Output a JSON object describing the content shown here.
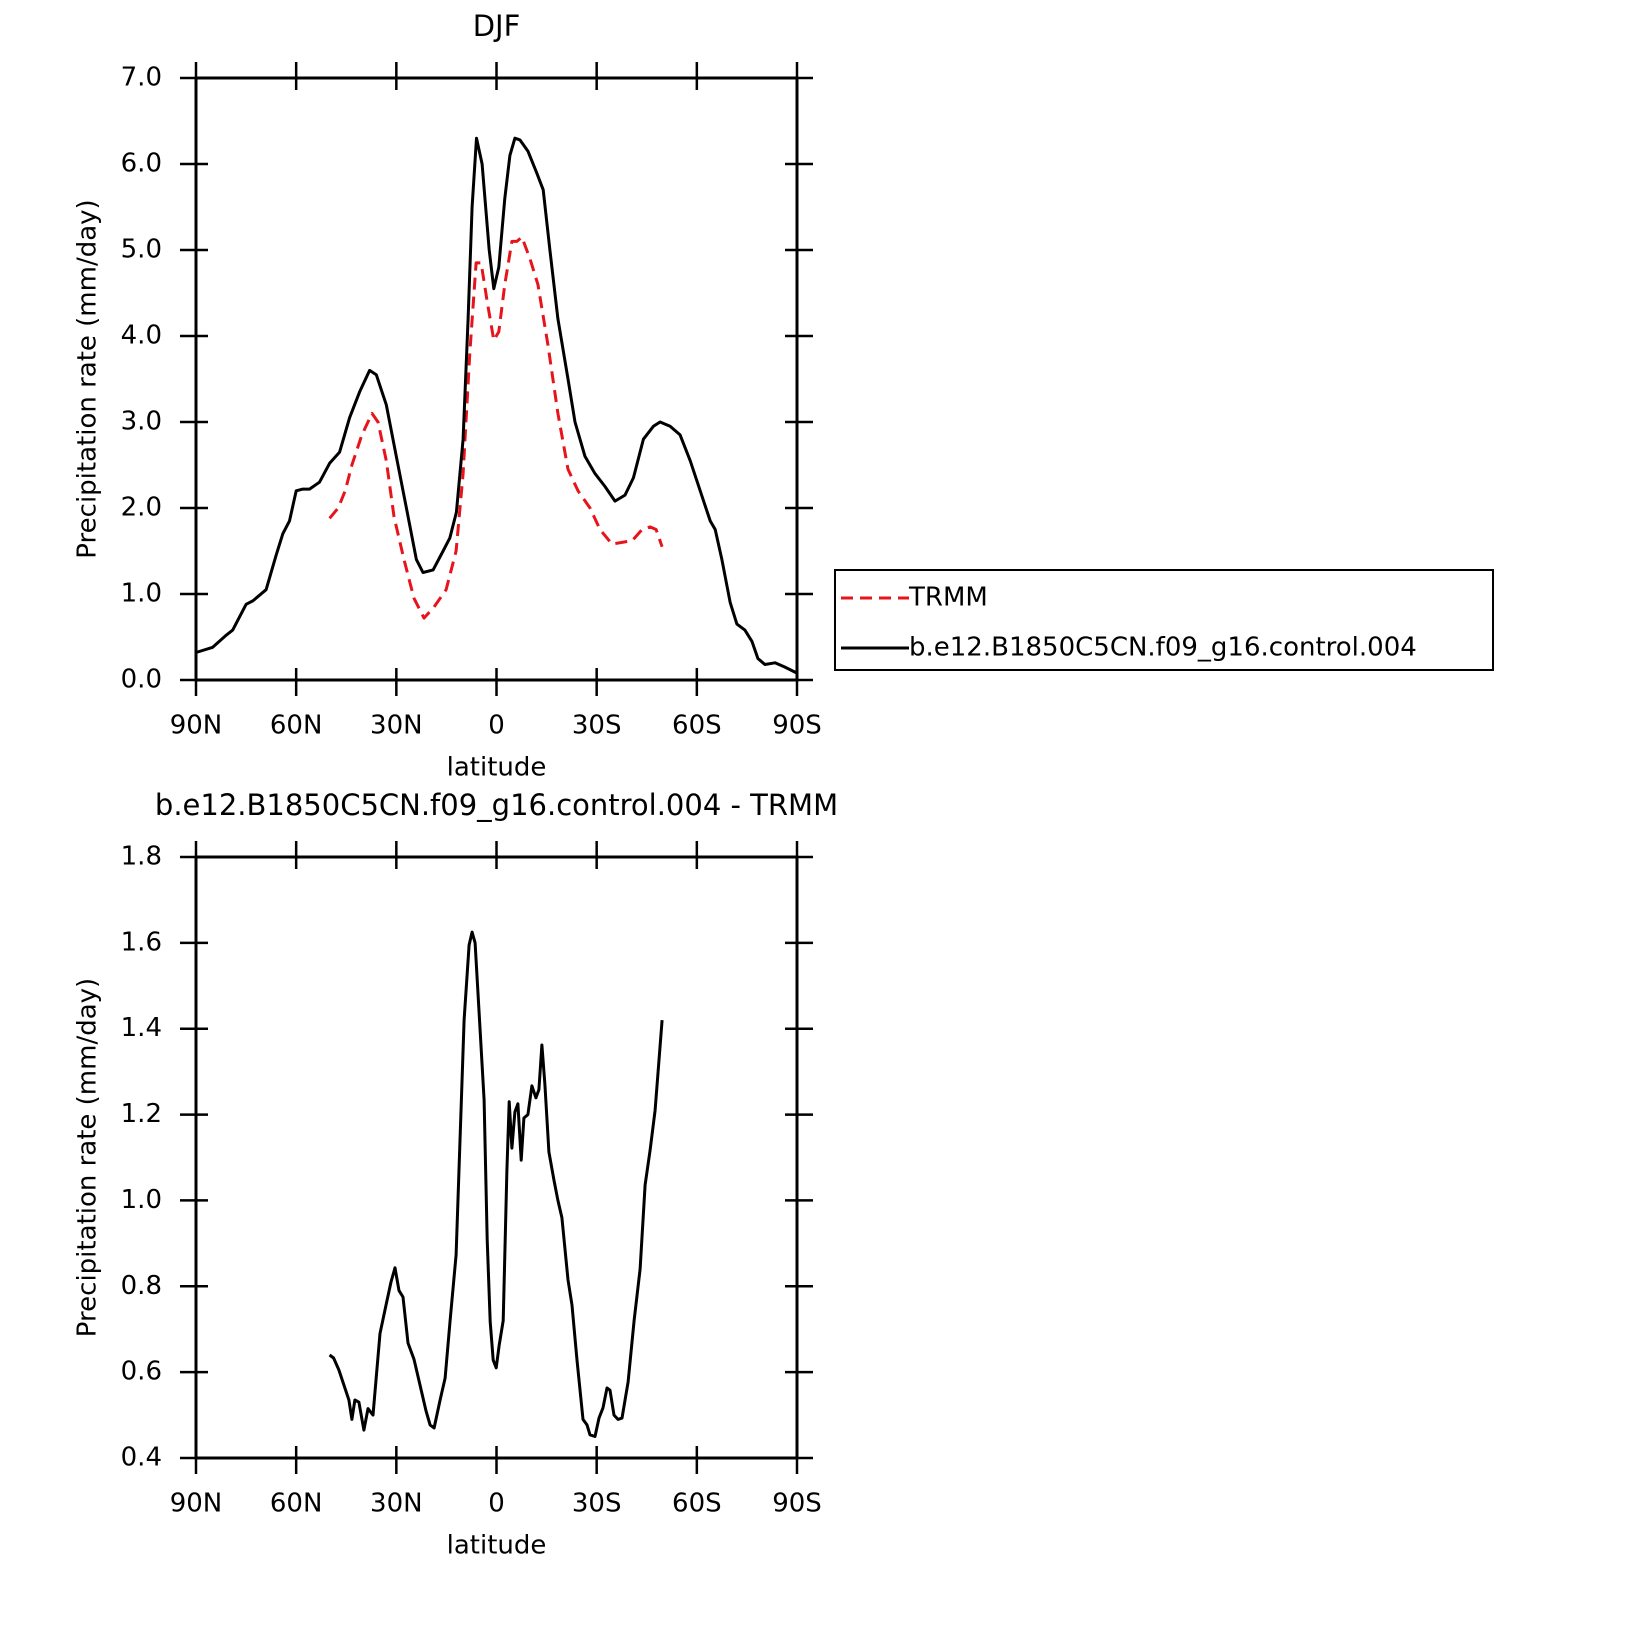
{
  "chart_data": [
    {
      "type": "line",
      "title": "DJF",
      "xlabel": "latitude",
      "ylabel": "Precipitation rate (mm/day)",
      "xlim": [
        90,
        -90
      ],
      "xticks": [
        {
          "value": 90,
          "label": "90N"
        },
        {
          "value": 60,
          "label": "60N"
        },
        {
          "value": 30,
          "label": "30N"
        },
        0,
        {
          "value": -30,
          "label": "30S"
        },
        {
          "value": -60,
          "label": "60S"
        },
        {
          "value": -90,
          "label": "90S"
        }
      ],
      "ylim": [
        0,
        7
      ],
      "yticks": [
        {
          "value": 0,
          "label": "0.0"
        },
        {
          "value": 1,
          "label": "1.0"
        },
        {
          "value": 2,
          "label": "2.0"
        },
        {
          "value": 3,
          "label": "3.0"
        },
        {
          "value": 4,
          "label": "4.0"
        },
        {
          "value": 5,
          "label": "5.0"
        },
        {
          "value": 6,
          "label": "6.0"
        },
        {
          "value": 7,
          "label": "7.0"
        }
      ],
      "legend": "outside-right",
      "series": [
        {
          "name": "TRMM",
          "color": "#e8141c",
          "style": "dashed",
          "x": [
            50,
            47.4,
            45.3,
            43.3,
            40.3,
            37.3,
            35.5,
            33,
            30.7,
            27.7,
            24.7,
            21.7,
            18.7,
            15.1,
            12.1,
            10,
            8,
            6.1,
            4.6,
            2.8,
            0.8,
            -0.7,
            -2.5,
            -4.6,
            -6.1,
            -7.6,
            -10,
            -12.4,
            -15.4,
            -18.4,
            -21.4,
            -24.4,
            -28,
            -31,
            -34.6,
            -37.6,
            -40.6,
            -43.6,
            -46,
            -47.8,
            -49.6
          ],
          "values": [
            1.88,
            2.0,
            2.2,
            2.5,
            2.85,
            3.1,
            3.0,
            2.55,
            1.9,
            1.4,
            0.95,
            0.72,
            0.85,
            1.05,
            1.5,
            2.4,
            3.8,
            4.85,
            4.85,
            4.4,
            3.95,
            4.05,
            4.6,
            5.1,
            5.1,
            5.15,
            4.9,
            4.6,
            3.9,
            3.1,
            2.45,
            2.2,
            2.0,
            1.75,
            1.58,
            1.6,
            1.62,
            1.75,
            1.78,
            1.75,
            1.55
          ]
        },
        {
          "name": "b.e12.B1850C5CN.f09_g16.control.004",
          "color": "#000000",
          "style": "solid",
          "x": [
            90,
            85,
            81,
            79,
            75,
            73,
            69,
            66,
            64,
            62,
            60,
            58,
            56,
            53,
            50,
            47,
            44,
            41,
            38,
            36,
            33,
            30,
            27,
            24,
            22,
            19,
            16,
            14,
            12,
            10,
            8.5,
            7.3,
            6,
            4.3,
            2.2,
            0.8,
            -0.7,
            -2.5,
            -4,
            -5.5,
            -7,
            -9.4,
            -12,
            -14,
            -16,
            -18.4,
            -21.4,
            -23.5,
            -26.5,
            -29.5,
            -32.5,
            -35.5,
            -38.5,
            -41,
            -44,
            -47,
            -49,
            -52,
            -55,
            -58,
            -61,
            -64,
            -65.5,
            -67.5,
            -70,
            -72,
            -74.4,
            -76.5,
            -78.3,
            -80.4,
            -83.4,
            -86.4,
            -90
          ],
          "values": [
            0.32,
            0.38,
            0.52,
            0.58,
            0.88,
            0.92,
            1.05,
            1.45,
            1.7,
            1.85,
            2.2,
            2.22,
            2.22,
            2.3,
            2.52,
            2.65,
            3.05,
            3.35,
            3.6,
            3.55,
            3.2,
            2.6,
            2.0,
            1.4,
            1.25,
            1.28,
            1.5,
            1.65,
            1.95,
            2.8,
            4.2,
            5.5,
            6.3,
            6.0,
            5.0,
            4.55,
            4.8,
            5.6,
            6.1,
            6.3,
            6.28,
            6.15,
            5.9,
            5.7,
            5.0,
            4.2,
            3.5,
            3.0,
            2.6,
            2.4,
            2.25,
            2.08,
            2.15,
            2.35,
            2.8,
            2.95,
            3.0,
            2.95,
            2.85,
            2.55,
            2.2,
            1.85,
            1.75,
            1.4,
            0.9,
            0.65,
            0.58,
            0.45,
            0.25,
            0.18,
            0.2,
            0.15,
            0.08
          ]
        }
      ]
    },
    {
      "type": "line",
      "title": "b.e12.B1850C5CN.f09_g16.control.004 - TRMM",
      "xlabel": "latitude",
      "ylabel": "Precipitation rate (mm/day)",
      "xlim": [
        90,
        -90
      ],
      "xticks": [
        {
          "value": 90,
          "label": "90N"
        },
        {
          "value": 60,
          "label": "60N"
        },
        {
          "value": 30,
          "label": "30N"
        },
        0,
        {
          "value": -30,
          "label": "30S"
        },
        {
          "value": -60,
          "label": "60S"
        },
        {
          "value": -90,
          "label": "90S"
        }
      ],
      "ylim": [
        0.4,
        1.8
      ],
      "yticks": [
        0.4,
        0.6,
        0.8,
        {
          "value": 1,
          "label": "1.0"
        },
        1.2,
        1.4,
        1.6,
        1.8
      ],
      "series": [
        {
          "color": "#000000",
          "style": "solid",
          "x": [
            50,
            48.8,
            47.2,
            45.7,
            44.2,
            43.3,
            42.4,
            41.2,
            39.7,
            38.5,
            37,
            34.9,
            33.1,
            31.6,
            30.4,
            29.2,
            28,
            26.5,
            24.7,
            22.9,
            21.1,
            19.9,
            18.7,
            16.9,
            15.4,
            13.9,
            12.1,
            9.7,
            8.2,
            7.3,
            6.4,
            4.9,
            3.7,
            2.8,
            1.9,
            1,
            0.1,
            -0.8,
            -2,
            -3.1,
            -3.8,
            -4.6,
            -5.5,
            -6.4,
            -7.4,
            -8.2,
            -9.4,
            -10.6,
            -11.8,
            -12.7,
            -13.6,
            -14.5,
            -15.7,
            -17.2,
            -18.4,
            -19.6,
            -21.4,
            -22.6,
            -24.1,
            -25.9,
            -27.1,
            -28,
            -29.5,
            -30.7,
            -31.9,
            -33.1,
            -34,
            -35.2,
            -36.4,
            -37.6,
            -39.4,
            -41.2,
            -43,
            -44.5,
            -46,
            -47.5,
            -49.6
          ],
          "values": [
            0.64,
            0.633,
            0.605,
            0.57,
            0.535,
            0.49,
            0.535,
            0.53,
            0.465,
            0.515,
            0.5,
            0.69,
            0.756,
            0.81,
            0.843,
            0.79,
            0.775,
            0.668,
            0.63,
            0.57,
            0.51,
            0.477,
            0.47,
            0.535,
            0.586,
            0.72,
            0.873,
            1.42,
            1.595,
            1.625,
            1.6,
            1.397,
            1.234,
            0.908,
            0.717,
            0.628,
            0.61,
            0.663,
            0.72,
            1.07,
            1.23,
            1.122,
            1.206,
            1.225,
            1.094,
            1.192,
            1.2,
            1.267,
            1.239,
            1.258,
            1.362,
            1.27,
            1.113,
            1.048,
            1.0,
            0.96,
            0.815,
            0.756,
            0.628,
            0.49,
            0.477,
            0.454,
            0.45,
            0.493,
            0.517,
            0.563,
            0.558,
            0.5,
            0.49,
            0.493,
            0.577,
            0.72,
            0.84,
            1.036,
            1.117,
            1.21,
            1.42
          ]
        }
      ]
    }
  ]
}
